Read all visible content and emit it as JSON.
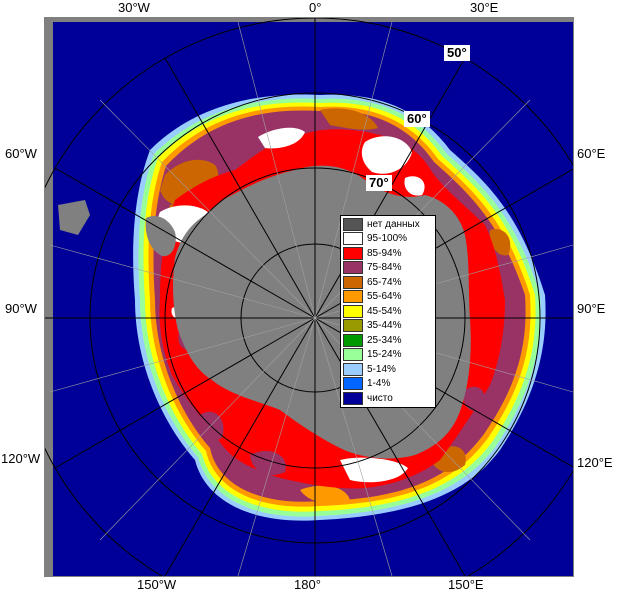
{
  "lon_labels": {
    "top": [
      "30°W",
      "0°",
      "30°E"
    ],
    "left": [
      "60°W",
      "90°W",
      "120°W"
    ],
    "right": [
      "60°E",
      "90°E",
      "120°E"
    ],
    "bottom": [
      "150°W",
      "180°",
      "150°E"
    ]
  },
  "lat_labels": [
    "50°",
    "60°",
    "70°"
  ],
  "legend": [
    {
      "label": "нет данных",
      "color": "#555555"
    },
    {
      "label": "95-100%",
      "color": "#ffffff"
    },
    {
      "label": "85-94%",
      "color": "#ff0000"
    },
    {
      "label": "75-84%",
      "color": "#993366"
    },
    {
      "label": "65-74%",
      "color": "#cc6600"
    },
    {
      "label": "55-64%",
      "color": "#ff9900"
    },
    {
      "label": "45-54%",
      "color": "#ffff00"
    },
    {
      "label": "35-44%",
      "color": "#999900"
    },
    {
      "label": "25-34%",
      "color": "#009900"
    },
    {
      "label": "15-24%",
      "color": "#99ff99"
    },
    {
      "label": "5-14%",
      "color": "#99ccff"
    },
    {
      "label": "1-4%",
      "color": "#0066ff"
    },
    {
      "label": "чисто",
      "color": "#000099"
    }
  ],
  "colors": {
    "ocean": "#000099",
    "land": "#808080",
    "frame": "#808080"
  }
}
